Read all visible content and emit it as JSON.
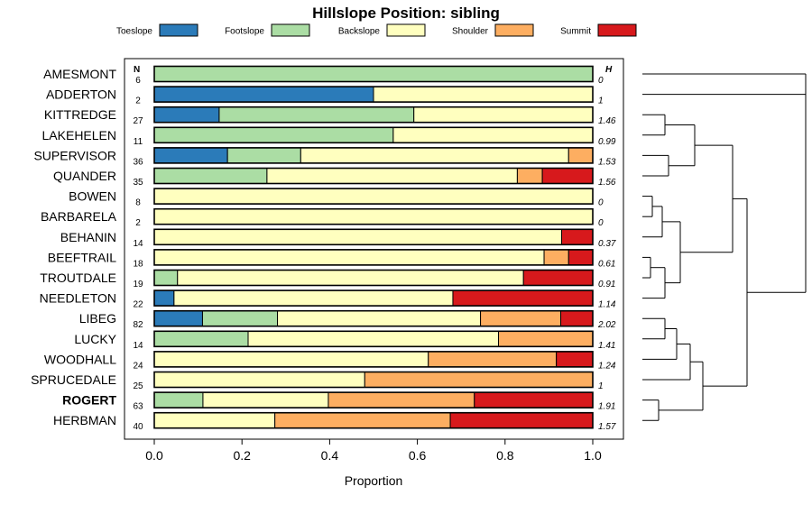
{
  "chart_data": {
    "type": "bar",
    "stacked": true,
    "orientation": "horizontal",
    "title": "Hillslope Position: sibling",
    "xlabel": "Proportion",
    "ylabel": "",
    "xlim": [
      0,
      1
    ],
    "xticks": [
      "0.0",
      "0.2",
      "0.4",
      "0.6",
      "0.8",
      "1.0"
    ],
    "legend_position": "top",
    "n_header": "N",
    "h_header": "H",
    "series": [
      {
        "name": "Toeslope",
        "color": "#2b7bb9"
      },
      {
        "name": "Footslope",
        "color": "#abdda4"
      },
      {
        "name": "Backslope",
        "color": "#ffffbf"
      },
      {
        "name": "Shoulder",
        "color": "#fdae61"
      },
      {
        "name": "Summit",
        "color": "#d7191c"
      }
    ],
    "rows": [
      {
        "label": "AMESMONT",
        "n": "6",
        "h": "0",
        "bold": false,
        "values": [
          0,
          1,
          0,
          0,
          0
        ]
      },
      {
        "label": "ADDERTON",
        "n": "2",
        "h": "1",
        "bold": false,
        "values": [
          0.5,
          0,
          0.5,
          0,
          0
        ]
      },
      {
        "label": "KITTREDGE",
        "n": "27",
        "h": "1.46",
        "bold": false,
        "values": [
          0.148,
          0.444,
          0.408,
          0,
          0
        ]
      },
      {
        "label": "LAKEHELEN",
        "n": "11",
        "h": "0.99",
        "bold": false,
        "values": [
          0,
          0.545,
          0.455,
          0,
          0
        ]
      },
      {
        "label": "SUPERVISOR",
        "n": "36",
        "h": "1.53",
        "bold": false,
        "values": [
          0.167,
          0.167,
          0.611,
          0.055,
          0
        ]
      },
      {
        "label": "QUANDER",
        "n": "35",
        "h": "1.56",
        "bold": false,
        "values": [
          0,
          0.257,
          0.571,
          0.057,
          0.115
        ]
      },
      {
        "label": "BOWEN",
        "n": "8",
        "h": "0",
        "bold": false,
        "values": [
          0,
          0,
          1,
          0,
          0
        ]
      },
      {
        "label": "BARBARELA",
        "n": "2",
        "h": "0",
        "bold": false,
        "values": [
          0,
          0,
          1,
          0,
          0
        ]
      },
      {
        "label": "BEHANIN",
        "n": "14",
        "h": "0.37",
        "bold": false,
        "values": [
          0,
          0,
          0.929,
          0,
          0.071
        ]
      },
      {
        "label": "BEEFTRAIL",
        "n": "18",
        "h": "0.61",
        "bold": false,
        "values": [
          0,
          0,
          0.889,
          0.056,
          0.055
        ]
      },
      {
        "label": "TROUTDALE",
        "n": "19",
        "h": "0.91",
        "bold": false,
        "values": [
          0,
          0.053,
          0.789,
          0,
          0.158
        ]
      },
      {
        "label": "NEEDLETON",
        "n": "22",
        "h": "1.14",
        "bold": false,
        "values": [
          0.045,
          0,
          0.636,
          0,
          0.319
        ]
      },
      {
        "label": "LIBEG",
        "n": "82",
        "h": "2.02",
        "bold": false,
        "values": [
          0.11,
          0.171,
          0.463,
          0.183,
          0.073
        ]
      },
      {
        "label": "LUCKY",
        "n": "14",
        "h": "1.41",
        "bold": false,
        "values": [
          0,
          0.214,
          0.571,
          0.215,
          0
        ]
      },
      {
        "label": "WOODHALL",
        "n": "24",
        "h": "1.24",
        "bold": false,
        "values": [
          0,
          0,
          0.625,
          0.292,
          0.083
        ]
      },
      {
        "label": "SPRUCEDALE",
        "n": "25",
        "h": "1",
        "bold": false,
        "values": [
          0,
          0,
          0.48,
          0.52,
          0
        ]
      },
      {
        "label": "ROGERT",
        "n": "63",
        "h": "1.91",
        "bold": true,
        "values": [
          0,
          0.111,
          0.286,
          0.333,
          0.27
        ]
      },
      {
        "label": "HERBMAN",
        "n": "40",
        "h": "1.57",
        "bold": false,
        "values": [
          0,
          0,
          0.275,
          0.4,
          0.325
        ]
      }
    ]
  }
}
